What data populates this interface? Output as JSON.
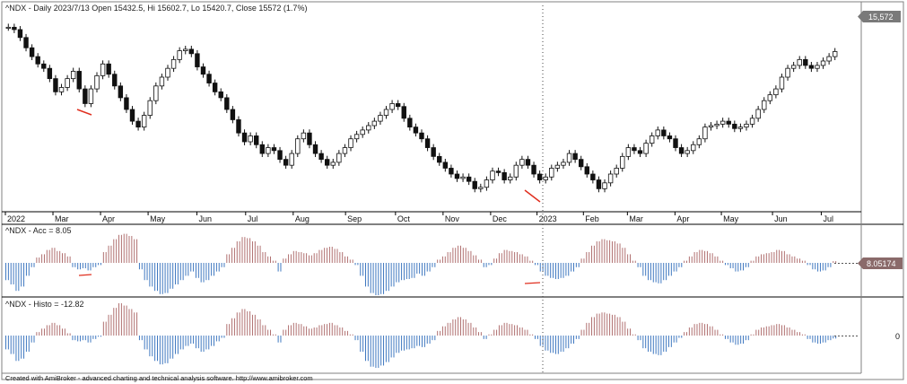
{
  "title_price": "^NDX - Daily 2023/7/13 Open 15432.5, Hi 15602.7, Lo 15420.7, Close 15572 (1.7%)",
  "title_acc": "^NDX - Acc = 8.05",
  "title_histo": "^NDX - Histo = -12.82",
  "footer": "Created with AmiBroker - advanced charting and technical analysis software. http://www.amibroker.com",
  "price_label": "15,572",
  "acc_label": "8.05174",
  "histo_zero_label": "0",
  "colors": {
    "up_bar": "#b07070",
    "down_bar": "#3f78c0",
    "candle": "#111111",
    "highlight": "#e03020",
    "grid": "#000000",
    "value_bg": "#7a7a7a",
    "acc_value_bg": "#8a6a6a"
  },
  "chart_data": [
    {
      "type": "line",
      "pane": "price",
      "title": "^NDX - Daily 2023/7/13 Open 15432.5, Hi 15602.7, Lo 15420.7, Close 15572 (1.7%)",
      "xlabel": "",
      "ylabel": "",
      "x_ticks": [
        "2022",
        "Mar",
        "Apr",
        "May",
        "Jun",
        "Jul",
        "Aug",
        "Sep",
        "Oct",
        "Nov",
        "Dec",
        "2023",
        "Feb",
        "Mar",
        "Apr",
        "May",
        "Jun",
        "Jul"
      ],
      "x_tick_days": [
        0,
        40,
        80,
        120,
        161,
        202,
        242,
        286,
        328,
        368,
        408,
        447,
        486,
        523,
        563,
        602,
        645,
        686
      ],
      "last_close": 15572,
      "ylim": [
        10300,
        16900
      ],
      "series": [
        {
          "values": [
            16400,
            16320,
            16050,
            15700,
            15400,
            15150,
            15000,
            14650,
            14200,
            14350,
            14650,
            14900,
            14300,
            13800,
            14300,
            14750,
            15150,
            14800,
            14400,
            14000,
            13600,
            13200,
            13000,
            13400,
            13900,
            14400,
            14700,
            15000,
            15300,
            15600,
            15650,
            15500,
            15050,
            14800,
            14500,
            14200,
            14000,
            13600,
            13250,
            12800,
            12500,
            12700,
            12400,
            12100,
            12300,
            12200,
            11900,
            11700,
            12100,
            12600,
            12800,
            12400,
            12100,
            11900,
            11700,
            11800,
            12100,
            12300,
            12600,
            12750,
            12900,
            13050,
            13200,
            13400,
            13600,
            13800,
            13700,
            13300,
            13000,
            12800,
            12600,
            12300,
            12000,
            11800,
            11600,
            11400,
            11250,
            11300,
            11150,
            10900,
            10950,
            11200,
            11500,
            11450,
            11200,
            11300,
            11700,
            11900,
            11700,
            11400,
            11200,
            11300,
            11600,
            11700,
            11800,
            12100,
            11900,
            11650,
            11400,
            11200,
            10900,
            11100,
            11400,
            11600,
            12000,
            12300,
            12200,
            12100,
            12450,
            12700,
            12900,
            12700,
            12600,
            12300,
            12100,
            12200,
            12400,
            12600,
            13000,
            13050,
            13100,
            13200,
            13100,
            12950,
            13000,
            13100,
            13300,
            13600,
            13900,
            14100,
            14300,
            14700,
            15000,
            15100,
            15300,
            15100,
            15000,
            15100,
            15250,
            15400,
            15572
          ]
        }
      ],
      "annotations": [
        "red marker near Mar 2022 low",
        "red marker near Dec 2022 low",
        "dotted vertical cursor line near 2023"
      ]
    },
    {
      "type": "bar",
      "pane": "acc",
      "title": "^NDX - Acc = 8.05",
      "xlabel": "",
      "ylabel": "",
      "last_value": 8.05174,
      "values": [
        -80,
        -100,
        -130,
        -110,
        -60,
        -20,
        25,
        40,
        60,
        70,
        55,
        45,
        30,
        -20,
        -30,
        -25,
        -35,
        -20,
        -10,
        50,
        80,
        110,
        130,
        135,
        125,
        110,
        -30,
        -80,
        -110,
        -130,
        -145,
        -140,
        -120,
        -100,
        -80,
        -60,
        -40,
        -70,
        -90,
        -80,
        -60,
        -40,
        -20,
        40,
        70,
        100,
        120,
        115,
        100,
        80,
        50,
        30,
        10,
        -40,
        20,
        40,
        55,
        50,
        45,
        35,
        45,
        60,
        70,
        75,
        65,
        50,
        30,
        15,
        -10,
        -60,
        -110,
        -140,
        -150,
        -145,
        -130,
        -110,
        -90,
        -80,
        -75,
        -70,
        -50,
        -60,
        -40,
        -20,
        15,
        30,
        50,
        70,
        80,
        70,
        55,
        35,
        15,
        -20,
        -10,
        20,
        45,
        60,
        55,
        50,
        40,
        30,
        10,
        -10,
        -40,
        -60,
        -70,
        -75,
        -70,
        -60,
        -40,
        -20,
        20,
        50,
        80,
        100,
        110,
        105,
        100,
        90,
        70,
        40,
        10,
        -20,
        -60,
        -80,
        -90,
        -95,
        -80,
        -60,
        -40,
        -20,
        10,
        30,
        50,
        60,
        55,
        45,
        30,
        10,
        -10,
        -25,
        -40,
        -35,
        -20,
        10,
        30,
        40,
        45,
        50,
        60,
        55,
        40,
        30,
        20,
        10,
        -10,
        -30,
        -40,
        -35,
        -20,
        8.05
      ]
    },
    {
      "type": "bar",
      "pane": "histo",
      "title": "^NDX - Histo = -12.82",
      "xlabel": "",
      "ylabel": "",
      "last_value": -12.82,
      "zero_line_label": "0",
      "values": [
        -60,
        -80,
        -110,
        -100,
        -70,
        -30,
        15,
        30,
        45,
        55,
        45,
        30,
        10,
        -20,
        -25,
        -20,
        -30,
        -15,
        -5,
        60,
        90,
        120,
        140,
        130,
        115,
        100,
        -20,
        -60,
        -90,
        -110,
        -125,
        -120,
        -100,
        -80,
        -60,
        -45,
        -35,
        -55,
        -70,
        -60,
        -45,
        -25,
        -10,
        50,
        75,
        100,
        115,
        105,
        90,
        70,
        45,
        25,
        5,
        -30,
        25,
        45,
        55,
        50,
        40,
        30,
        35,
        45,
        50,
        55,
        45,
        35,
        20,
        5,
        -20,
        -70,
        -110,
        -135,
        -140,
        -130,
        -115,
        -95,
        -75,
        -65,
        -60,
        -55,
        -45,
        -50,
        -35,
        -20,
        20,
        40,
        55,
        70,
        80,
        70,
        55,
        35,
        15,
        -15,
        5,
        25,
        45,
        55,
        50,
        45,
        35,
        25,
        5,
        -15,
        -45,
        -65,
        -75,
        -80,
        -70,
        -55,
        -35,
        -15,
        25,
        55,
        80,
        95,
        100,
        95,
        90,
        80,
        60,
        30,
        5,
        -20,
        -55,
        -70,
        -80,
        -85,
        -70,
        -50,
        -30,
        -10,
        15,
        35,
        50,
        55,
        50,
        40,
        25,
        5,
        -15,
        -30,
        -40,
        -35,
        -20,
        5,
        25,
        35,
        40,
        45,
        50,
        45,
        35,
        25,
        15,
        5,
        -15,
        -30,
        -35,
        -30,
        -20,
        -12.82
      ]
    }
  ]
}
